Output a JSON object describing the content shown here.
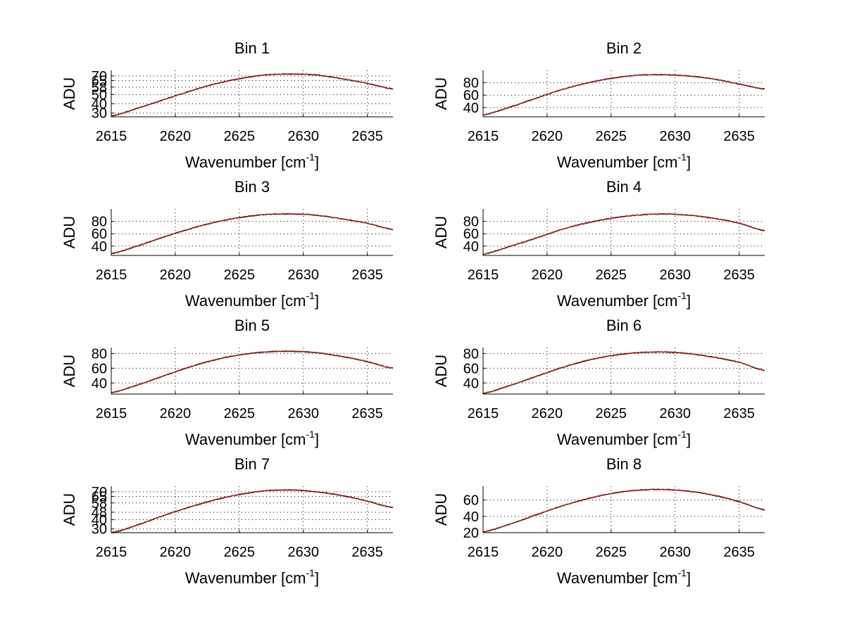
{
  "figure": {
    "background": "#ffffff",
    "line_colors": [
      "#1f7fd0",
      "#e08020",
      "#000000",
      "#c01010"
    ]
  },
  "chart_data": [
    {
      "type": "line",
      "title": "Bin 1",
      "xlabel": "Wavenumber [cm",
      "xlabel_sup": "-1",
      "xlabel_end": "]",
      "ylabel": "ADU",
      "xlim": [
        2615,
        2637
      ],
      "ylim": [
        26,
        76
      ],
      "xticks": [
        2615,
        2620,
        2625,
        2630,
        2635
      ],
      "yticks": [
        30,
        40,
        50,
        58,
        65,
        70
      ],
      "ytick_labels": [
        "30",
        "40",
        "50",
        "58",
        "65",
        "70"
      ],
      "grid": true,
      "x": [
        2615,
        2617,
        2619,
        2621,
        2623,
        2625,
        2627,
        2629,
        2631,
        2633,
        2635,
        2637
      ],
      "y": [
        27,
        35,
        44,
        53,
        61,
        67,
        71,
        72,
        71,
        67,
        62,
        56
      ]
    },
    {
      "type": "line",
      "title": "Bin 2",
      "xlabel": "Wavenumber [cm",
      "xlabel_sup": "-1",
      "xlabel_end": "]",
      "ylabel": "ADU",
      "xlim": [
        2615,
        2637
      ],
      "ylim": [
        25,
        100
      ],
      "xticks": [
        2615,
        2620,
        2625,
        2630,
        2635
      ],
      "yticks": [
        40,
        60,
        80
      ],
      "ytick_labels": [
        "40",
        "60",
        "80"
      ],
      "grid": true,
      "x": [
        2615,
        2617,
        2619,
        2621,
        2623,
        2625,
        2627,
        2629,
        2631,
        2633,
        2635,
        2637
      ],
      "y": [
        28,
        40,
        54,
        68,
        79,
        87,
        92,
        93,
        91,
        86,
        78,
        70
      ]
    },
    {
      "type": "line",
      "title": "Bin 3",
      "xlabel": "Wavenumber [cm",
      "xlabel_sup": "-1",
      "xlabel_end": "]",
      "ylabel": "ADU",
      "xlim": [
        2615,
        2637
      ],
      "ylim": [
        25,
        100
      ],
      "xticks": [
        2615,
        2620,
        2625,
        2630,
        2635
      ],
      "yticks": [
        40,
        60,
        80
      ],
      "ytick_labels": [
        "40",
        "60",
        "80"
      ],
      "grid": true,
      "x": [
        2615,
        2617,
        2619,
        2621,
        2623,
        2625,
        2627,
        2629,
        2631,
        2633,
        2635,
        2637
      ],
      "y": [
        28,
        40,
        54,
        67,
        78,
        86,
        91,
        92,
        90,
        84,
        77,
        67
      ]
    },
    {
      "type": "line",
      "title": "Bin 4",
      "xlabel": "Wavenumber [cm",
      "xlabel_sup": "-1",
      "xlabel_end": "]",
      "ylabel": "ADU",
      "xlim": [
        2615,
        2637
      ],
      "ylim": [
        25,
        100
      ],
      "xticks": [
        2615,
        2620,
        2625,
        2630,
        2635
      ],
      "yticks": [
        40,
        60,
        80
      ],
      "ytick_labels": [
        "40",
        "60",
        "80"
      ],
      "grid": true,
      "x": [
        2615,
        2617,
        2619,
        2621,
        2623,
        2625,
        2627,
        2629,
        2631,
        2633,
        2635,
        2637
      ],
      "y": [
        27,
        39,
        52,
        66,
        77,
        85,
        90,
        92,
        90,
        85,
        77,
        65
      ]
    },
    {
      "type": "line",
      "title": "Bin 5",
      "xlabel": "Wavenumber [cm",
      "xlabel_sup": "-1",
      "xlabel_end": "]",
      "ylabel": "ADU",
      "xlim": [
        2615,
        2637
      ],
      "ylim": [
        25,
        88
      ],
      "xticks": [
        2615,
        2620,
        2625,
        2630,
        2635
      ],
      "yticks": [
        40,
        60,
        80
      ],
      "ytick_labels": [
        "40",
        "60",
        "80"
      ],
      "grid": true,
      "x": [
        2615,
        2617,
        2619,
        2621,
        2623,
        2625,
        2627,
        2629,
        2631,
        2633,
        2635,
        2637
      ],
      "y": [
        27,
        37,
        49,
        61,
        71,
        78,
        82,
        83,
        81,
        76,
        69,
        60
      ]
    },
    {
      "type": "line",
      "title": "Bin 6",
      "xlabel": "Wavenumber [cm",
      "xlabel_sup": "-1",
      "xlabel_end": "]",
      "ylabel": "ADU",
      "xlim": [
        2615,
        2637
      ],
      "ylim": [
        25,
        88
      ],
      "xticks": [
        2615,
        2620,
        2625,
        2630,
        2635
      ],
      "yticks": [
        40,
        60,
        80
      ],
      "ytick_labels": [
        "40",
        "60",
        "80"
      ],
      "grid": true,
      "x": [
        2615,
        2617,
        2619,
        2621,
        2623,
        2625,
        2627,
        2629,
        2631,
        2633,
        2635,
        2637
      ],
      "y": [
        26,
        36,
        48,
        60,
        70,
        77,
        81,
        82,
        80,
        75,
        68,
        57
      ]
    },
    {
      "type": "line",
      "title": "Bin 7",
      "xlabel": "Wavenumber [cm",
      "xlabel_sup": "-1",
      "xlabel_end": "]",
      "ylabel": "ADU",
      "xlim": [
        2615,
        2637
      ],
      "ylim": [
        26,
        76
      ],
      "xticks": [
        2615,
        2620,
        2625,
        2630,
        2635
      ],
      "yticks": [
        30,
        40,
        48,
        58,
        65,
        70
      ],
      "ytick_labels": [
        "30",
        "40",
        "48",
        "58",
        "65",
        "70"
      ],
      "grid": true,
      "x": [
        2615,
        2617,
        2619,
        2621,
        2623,
        2625,
        2627,
        2629,
        2631,
        2633,
        2635,
        2637
      ],
      "y": [
        26,
        34,
        44,
        53,
        61,
        67,
        71,
        72,
        70,
        66,
        60,
        53
      ]
    },
    {
      "type": "line",
      "title": "Bin 8",
      "xlabel": "Wavenumber [cm",
      "xlabel_sup": "-1",
      "xlabel_end": "]",
      "ylabel": "ADU",
      "xlim": [
        2615,
        2637
      ],
      "ylim": [
        20,
        77
      ],
      "xticks": [
        2615,
        2620,
        2625,
        2630,
        2635
      ],
      "yticks": [
        20,
        40,
        60
      ],
      "ytick_labels": [
        "20",
        "40",
        "60"
      ],
      "grid": true,
      "x": [
        2615,
        2617,
        2619,
        2621,
        2623,
        2625,
        2627,
        2629,
        2631,
        2633,
        2635,
        2637
      ],
      "y": [
        21,
        30,
        41,
        52,
        61,
        68,
        72,
        73,
        71,
        66,
        58,
        48
      ]
    }
  ]
}
